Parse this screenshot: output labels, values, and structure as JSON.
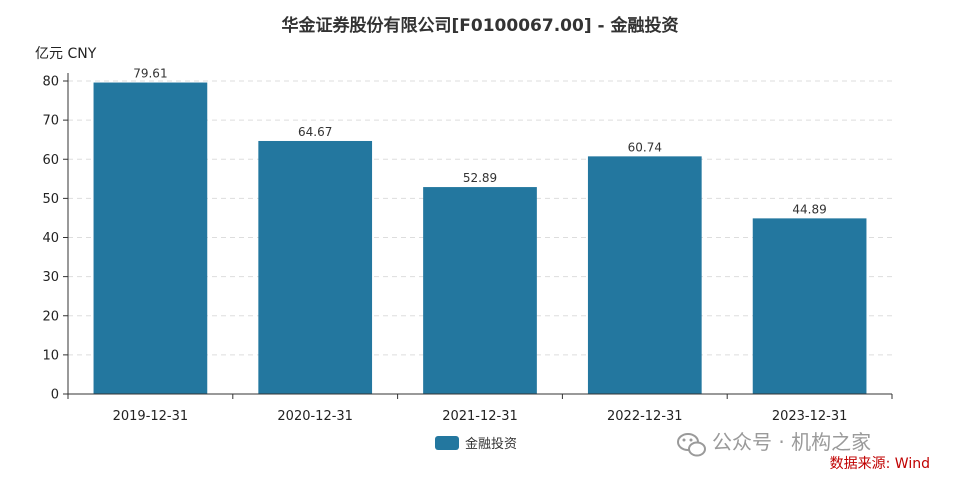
{
  "chart_data": {
    "type": "bar",
    "title": "华金证券股份有限公司[F0100067.00] - 金融投资",
    "unit_label": "亿元  CNY",
    "categories": [
      "2019-12-31",
      "2020-12-31",
      "2021-12-31",
      "2022-12-31",
      "2023-12-31"
    ],
    "series": [
      {
        "name": "金融投资",
        "values": [
          79.61,
          64.67,
          52.89,
          60.74,
          44.89
        ],
        "color": "#23779f"
      }
    ],
    "data_labels": [
      "79.61",
      "64.67",
      "52.89",
      "60.74",
      "44.89"
    ],
    "ylim": [
      0,
      80
    ],
    "yticks": [
      0,
      10,
      20,
      30,
      40,
      50,
      60,
      70,
      80
    ],
    "grid": true,
    "legend_position": "bottom-center"
  },
  "watermark": "公众号 · 机构之家",
  "source": "数据来源: Wind"
}
